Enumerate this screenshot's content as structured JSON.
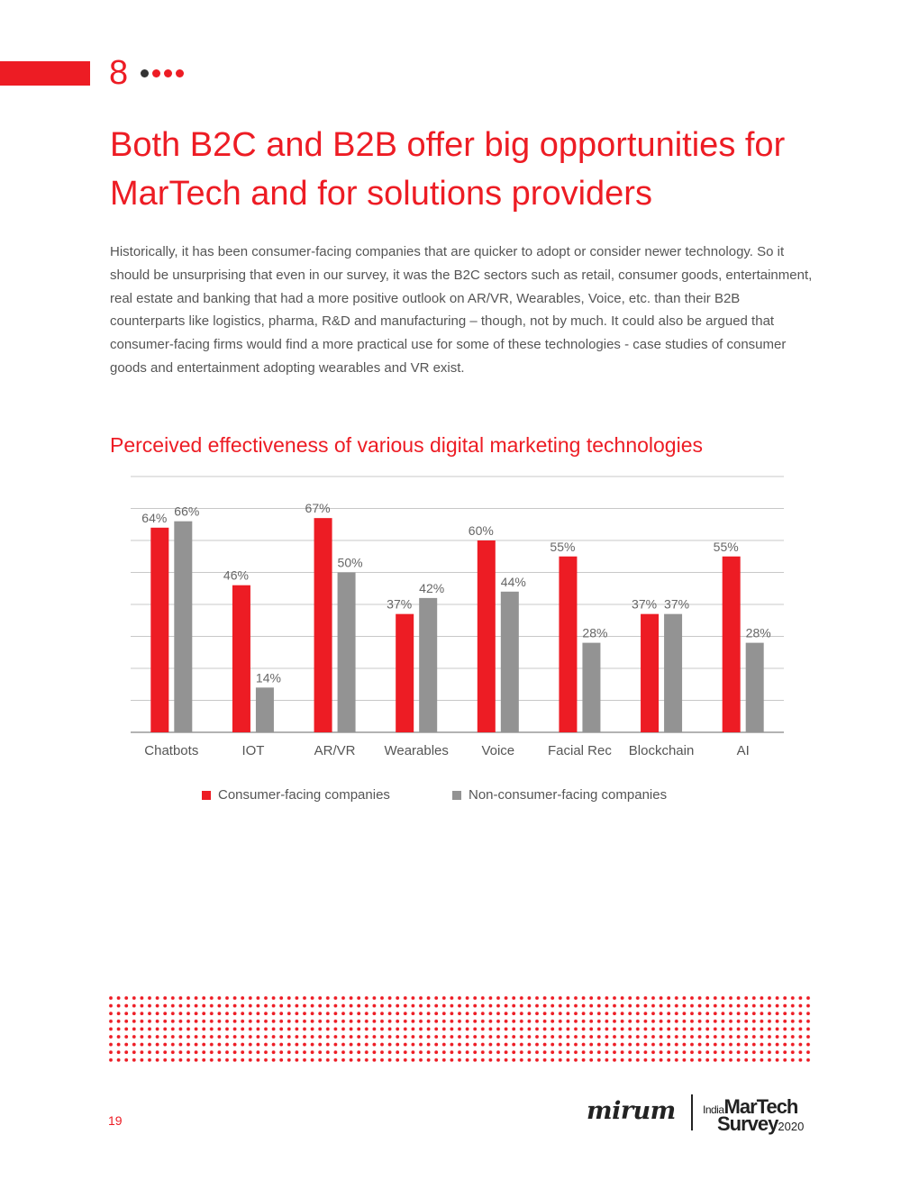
{
  "section": {
    "number": "8"
  },
  "title": "Both B2C and B2B offer big opportunities for MarTech and for solutions providers",
  "body": "Historically, it has been consumer-facing companies that are quicker to adopt or consider newer technology. So it should be unsurprising that even in our survey, it was the B2C sectors such as retail, consumer goods, entertainment, real estate and banking that had a more positive outlook on AR/VR, Wearables, Voice, etc. than their B2B counterparts like logistics, pharma, R&D and manufacturing – though, not by much. It could also be argued that consumer-facing firms would find a more practical use for some of these technologies - case studies of consumer goods and entertainment adopting wearables and VR exist.",
  "chart_heading": "Perceived effectiveness of various digital marketing technologies",
  "chart_data": {
    "type": "bar",
    "title": "Perceived effectiveness of various digital marketing technologies",
    "categories": [
      "Chatbots",
      "IOT",
      "AR/VR",
      "Wearables",
      "Voice",
      "Facial Rec",
      "Blockchain",
      "AI"
    ],
    "series": [
      {
        "name": "Consumer-facing companies",
        "color": "#ed1c24",
        "values": [
          64,
          46,
          67,
          37,
          60,
          55,
          37,
          55
        ]
      },
      {
        "name": "Non-consumer-facing companies",
        "color": "#939393",
        "values": [
          66,
          14,
          50,
          42,
          44,
          28,
          37,
          28
        ]
      }
    ],
    "value_suffix": "%",
    "ylim": [
      0,
      80
    ],
    "grid": true,
    "y_tick_labels_shown": false,
    "legend_position": "bottom"
  },
  "footer": {
    "page_number": "19",
    "logo_mirum": "mirum",
    "logo_survey": {
      "india": "India",
      "martech": "MarTech",
      "survey": "Survey",
      "year": "2020"
    }
  }
}
